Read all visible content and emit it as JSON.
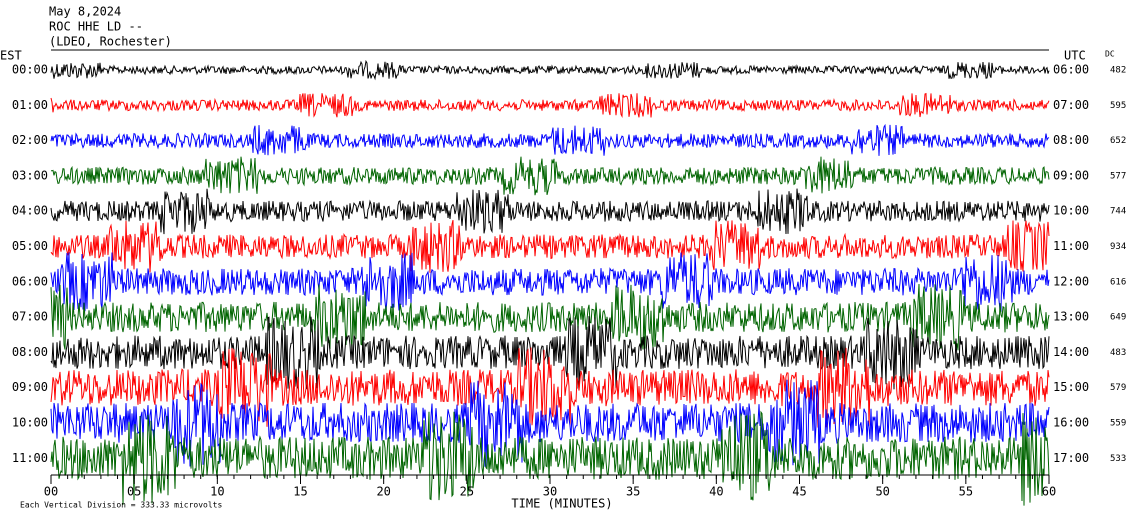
{
  "chart_data": {
    "type": "helicorder",
    "title_lines": [
      "May 8,2024",
      "ROC HHE LD --",
      "(LDEO, Rochester)"
    ],
    "left_axis_title": "EST",
    "right_axis_title": "UTC",
    "dc_title": "DC",
    "left_labels": [
      "00:00",
      "01:00",
      "02:00",
      "03:00",
      "04:00",
      "05:00",
      "06:00",
      "07:00",
      "08:00",
      "09:00",
      "10:00",
      "11:00"
    ],
    "right_labels": [
      "06:00",
      "07:00",
      "08:00",
      "09:00",
      "10:00",
      "11:00",
      "12:00",
      "13:00",
      "14:00",
      "15:00",
      "16:00",
      "17:00"
    ],
    "dc_values": [
      482,
      595,
      652,
      577,
      744,
      934,
      616,
      649,
      483,
      579,
      559,
      533
    ],
    "colors": [
      "#000000",
      "#ff0000",
      "#0000ff",
      "#006400"
    ],
    "xlabel": "TIME (MINUTES)",
    "xlim": [
      0,
      60
    ],
    "xticks": [
      {
        "value": 0,
        "label": "00"
      },
      {
        "value": 5,
        "label": "05"
      },
      10,
      15,
      20,
      25,
      30,
      35,
      40,
      45,
      50,
      55,
      60
    ],
    "footer": "Each Vertical Division = 333.33 microvolts"
  }
}
